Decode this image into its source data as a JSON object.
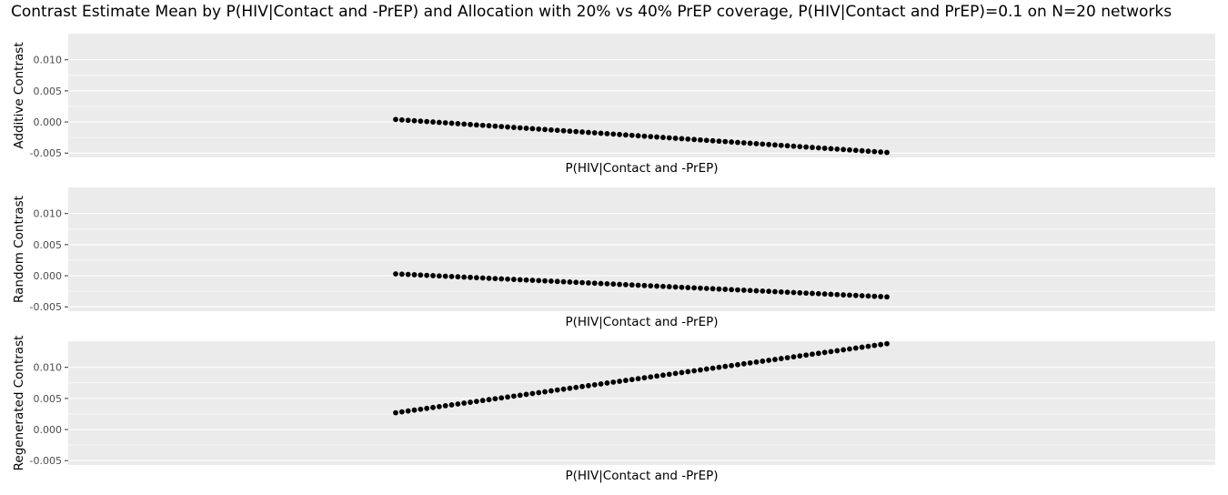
{
  "title": "Contrast Estimate Mean by P(HIV|Contact and -PrEP) and Allocation with 20% vs 40% PrEP coverage, P(HIV|Contact and PrEP)=0.1 on N=20 networks",
  "colors": {
    "panel_bg": "#ebebeb",
    "grid": "#ffffff",
    "point": "#000000",
    "tick_text": "#4d4d4d"
  },
  "chart_data": [
    {
      "type": "scatter",
      "xlabel": "P(HIV|Contact and -PrEP)",
      "ylabel": "Additive Contrast",
      "ylim": [
        -0.0057,
        0.0142
      ],
      "yticks": [
        -0.005,
        0.0,
        0.005,
        0.01
      ],
      "ytick_labels": [
        "-0.005",
        "0.000",
        "0.005",
        "0.010"
      ],
      "grid": true,
      "series": [
        {
          "n_points": 80,
          "y_start": 0.0004,
          "y_end": -0.0049
        }
      ]
    },
    {
      "type": "scatter",
      "xlabel": "P(HIV|Contact and -PrEP)",
      "ylabel": "Random Contrast",
      "ylim": [
        -0.0057,
        0.0142
      ],
      "yticks": [
        -0.005,
        0.0,
        0.005,
        0.01
      ],
      "ytick_labels": [
        "-0.005",
        "0.000",
        "0.005",
        "0.010"
      ],
      "grid": true,
      "series": [
        {
          "n_points": 80,
          "y_start": 0.0003,
          "y_end": -0.0034
        }
      ]
    },
    {
      "type": "scatter",
      "xlabel": "P(HIV|Contact and -PrEP)",
      "ylabel": "Regenerated Contrast",
      "ylim": [
        -0.0057,
        0.0142
      ],
      "yticks": [
        -0.005,
        0.0,
        0.005,
        0.01
      ],
      "ytick_labels": [
        "-0.005",
        "0.000",
        "0.005",
        "0.010"
      ],
      "grid": true,
      "series": [
        {
          "n_points": 80,
          "y_start": 0.0027,
          "y_end": 0.0138
        }
      ]
    }
  ]
}
